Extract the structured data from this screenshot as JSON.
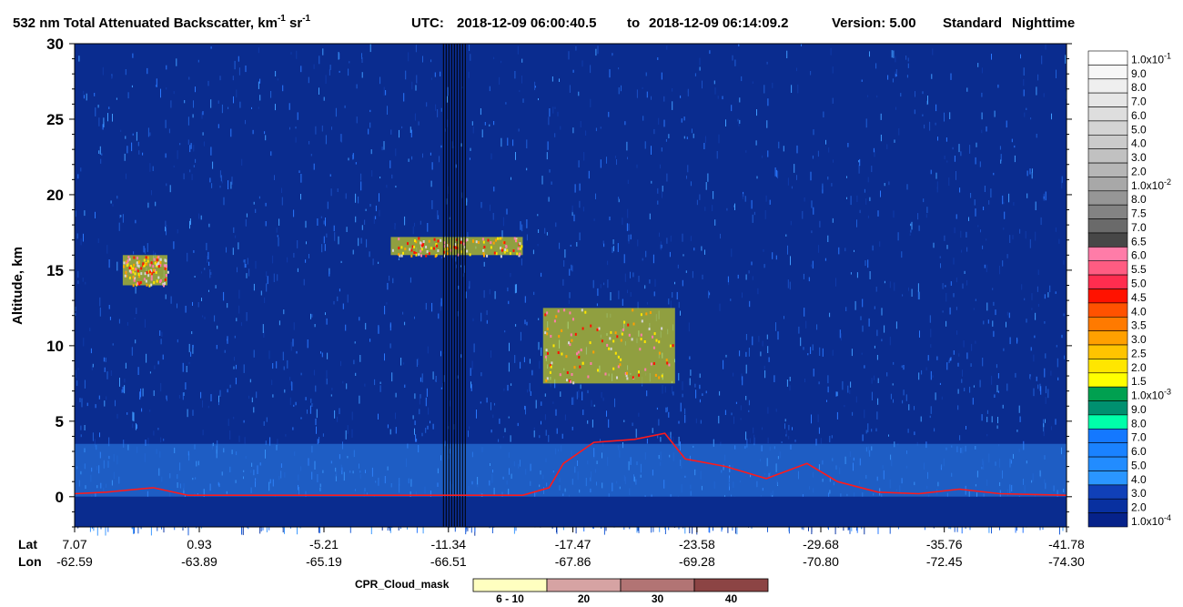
{
  "chart_data": {
    "type": "heatmap",
    "title": {
      "quantity": "532 nm Total Attenuated Backscatter, km",
      "exp1": "-1",
      "mid": " sr",
      "exp2": "-1",
      "utc_label": "UTC:",
      "utc_start": "2018-12-09 06:00:40.5",
      "to": "to",
      "utc_end": "2018-12-09 06:14:09.2",
      "version_label": "Version: 5.00",
      "product": "Standard",
      "mode": "Nighttime"
    },
    "ylabel": "Altitude, km",
    "ylim": [
      -2,
      30
    ],
    "yticks": [
      "-0",
      "0",
      "5",
      "10",
      "15",
      "20",
      "25",
      "30"
    ],
    "ytick_values": [
      0,
      0,
      5,
      10,
      15,
      20,
      25,
      30
    ],
    "x_axis": {
      "lat_label": "Lat",
      "lon_label": "Lon",
      "ticks": [
        {
          "lat": "7.07",
          "lon": "-62.59"
        },
        {
          "lat": "0.93",
          "lon": "-63.89"
        },
        {
          "lat": "-5.21",
          "lon": "-65.19"
        },
        {
          "lat": "-11.34",
          "lon": "-66.51"
        },
        {
          "lat": "-17.47",
          "lon": "-67.86"
        },
        {
          "lat": "-23.58",
          "lon": "-69.28"
        },
        {
          "lat": "-29.68",
          "lon": "-70.80"
        },
        {
          "lat": "-35.76",
          "lon": "-72.45"
        },
        {
          "lat": "-41.78",
          "lon": "-74.30"
        }
      ]
    },
    "colorbar": [
      {
        "label": "1.0x10",
        "exp": "-1",
        "color": "#ffffff"
      },
      {
        "label": "9.0",
        "color": "#f7f7f7"
      },
      {
        "label": "8.0",
        "color": "#efefef"
      },
      {
        "label": "7.0",
        "color": "#e6e6e6"
      },
      {
        "label": "6.0",
        "color": "#dedede"
      },
      {
        "label": "5.0",
        "color": "#d4d4d4"
      },
      {
        "label": "4.0",
        "color": "#cbcbcb"
      },
      {
        "label": "3.0",
        "color": "#c1c1c1"
      },
      {
        "label": "2.0",
        "color": "#b6b6b6"
      },
      {
        "label": "1.0x10",
        "exp": "-2",
        "color": "#a8a8a8"
      },
      {
        "label": "8.0",
        "color": "#969696"
      },
      {
        "label": "7.5",
        "color": "#838383"
      },
      {
        "label": "7.0",
        "color": "#6a6a6a"
      },
      {
        "label": "6.5",
        "color": "#474747"
      },
      {
        "label": "6.0",
        "color": "#ff7ca8"
      },
      {
        "label": "5.5",
        "color": "#ff5c82"
      },
      {
        "label": "5.0",
        "color": "#ff2d4f"
      },
      {
        "label": "4.5",
        "color": "#ff1200"
      },
      {
        "label": "4.0",
        "color": "#ff5200"
      },
      {
        "label": "3.5",
        "color": "#ff7a00"
      },
      {
        "label": "3.0",
        "color": "#ffa000"
      },
      {
        "label": "2.5",
        "color": "#ffc400"
      },
      {
        "label": "2.0",
        "color": "#ffe600"
      },
      {
        "label": "1.5",
        "color": "#ffff00"
      },
      {
        "label": "1.0x10",
        "exp": "-3",
        "color": "#00a050"
      },
      {
        "label": "9.0",
        "color": "#009070"
      },
      {
        "label": "8.0",
        "color": "#00ffaa"
      },
      {
        "label": "7.0",
        "color": "#1478ff"
      },
      {
        "label": "6.0",
        "color": "#1a82ff"
      },
      {
        "label": "5.0",
        "color": "#228cff"
      },
      {
        "label": "4.0",
        "color": "#2a96ff"
      },
      {
        "label": "3.0",
        "color": "#1040b8"
      },
      {
        "label": "2.0",
        "color": "#0830a0"
      },
      {
        "label": "1.0x10",
        "exp": "-4",
        "color": "#06228a"
      }
    ],
    "cpr_legend": {
      "label": "CPR_Cloud_mask",
      "bins": [
        {
          "label": "6 - 10",
          "color": "#ffffc0"
        },
        {
          "label": "20",
          "color": "#d6a3a3"
        },
        {
          "label": "30",
          "color": "#b27474"
        },
        {
          "label": "40",
          "color": "#8c4444"
        }
      ]
    },
    "features": {
      "surface_line_color": "#ff1a1a",
      "data_gap_lat": -11.34,
      "cirrus_layers": [
        {
          "lat_start": 4.7,
          "lat_end": 2.5,
          "base_km": 14.0,
          "top_km": 16.0
        },
        {
          "lat_start": -8.5,
          "lat_end": -15.0,
          "base_km": 16.0,
          "top_km": 17.2
        },
        {
          "lat_start": -16.0,
          "lat_end": -22.5,
          "base_km": 7.5,
          "top_km": 12.5
        }
      ]
    }
  }
}
